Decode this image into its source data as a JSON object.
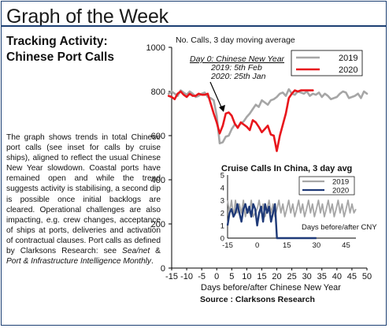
{
  "header": {
    "title": "Graph of the Week"
  },
  "article": {
    "title_line1": "Tracking Activity:",
    "title_line2": "Chinese Port Calls",
    "body_plain": "The graph shows trends in total Chinese port calls (see inset for calls by cruise ships), aligned to reflect the usual Chinese New Year slowdown. Coastal ports have remained open and while the trend suggests activity is stabilising, a second dip is possible once initial backlogs are cleared. Operational challenges are also impacting, e.g. crew changes, acceptance of ships at ports, deliveries and activation of contractual clauses. Port calls as defined by Clarksons Research: see ",
    "body_italic1": "Sea/net",
    "body_amp": " & ",
    "body_italic2": "Port & Infrastructure Intelligence Monthly",
    "body_end": "."
  },
  "source": "Source : Clarksons Research",
  "colors": {
    "frame": "#1c3f73",
    "series_2019": "#a6a6a6",
    "series_2020": "#e8161c",
    "inset_2020": "#1f3a78"
  },
  "chart_data": [
    {
      "type": "line",
      "title": "",
      "ylabel": "No. Calls, 3 day moving average",
      "xlabel": "Days before/after Chinese New Year",
      "xlim": [
        -15,
        50
      ],
      "ylim": [
        0,
        1000
      ],
      "x_ticks": [
        "-15",
        "-10",
        "-5",
        "0",
        "5",
        "10",
        "15",
        "20",
        "25",
        "30",
        "35",
        "40",
        "45",
        "50"
      ],
      "y_ticks": [
        "0",
        "200",
        "400",
        "600",
        "800",
        "1000"
      ],
      "grid": false,
      "legend_position": "top-right",
      "annotation": {
        "line1": "Day 0: Chinese New Year",
        "line2": "2019: 5th Feb",
        "line3": "2020: 25th Jan"
      },
      "series": [
        {
          "name": "2019",
          "x": [
            -16,
            -15,
            -14,
            -13,
            -12,
            -11,
            -10,
            -9,
            -8,
            -7,
            -6,
            -5,
            -4,
            -3,
            -2,
            -1,
            0,
            1,
            2,
            3,
            4,
            5,
            6,
            7,
            8,
            9,
            10,
            11,
            12,
            13,
            14,
            15,
            16,
            17,
            18,
            19,
            20,
            21,
            22,
            23,
            24,
            25,
            26,
            27,
            28,
            29,
            30,
            31,
            32,
            33,
            34,
            35,
            36,
            37,
            38,
            39,
            40,
            41,
            42,
            43,
            44,
            45,
            46,
            47,
            48,
            49,
            50
          ],
          "y": [
            790,
            800,
            790,
            780,
            805,
            795,
            785,
            800,
            790,
            775,
            780,
            790,
            795,
            775,
            770,
            760,
            690,
            565,
            570,
            595,
            600,
            630,
            650,
            640,
            655,
            665,
            685,
            700,
            720,
            740,
            730,
            760,
            750,
            740,
            760,
            765,
            775,
            790,
            795,
            780,
            810,
            790,
            785,
            800,
            795,
            790,
            800,
            780,
            790,
            785,
            795,
            775,
            790,
            780,
            765,
            770,
            775,
            790,
            800,
            795,
            770,
            775,
            780,
            790,
            770,
            800,
            790
          ]
        },
        {
          "name": "2020",
          "x": [
            -16,
            -15,
            -14,
            -13,
            -12,
            -11,
            -10,
            -9,
            -8,
            -7,
            -6,
            -5,
            -4,
            -3,
            -2,
            -1,
            0,
            1,
            2,
            3,
            4,
            5,
            6,
            7,
            8,
            9,
            10,
            11,
            12,
            13,
            14,
            15,
            16,
            17,
            18,
            19,
            20,
            21,
            22,
            23,
            24,
            25,
            26,
            27,
            28,
            29,
            30,
            31,
            32
          ],
          "y": [
            780,
            775,
            765,
            790,
            800,
            785,
            775,
            790,
            780,
            780,
            790,
            785,
            785,
            790,
            745,
            700,
            660,
            610,
            645,
            700,
            705,
            690,
            655,
            635,
            660,
            650,
            640,
            625,
            670,
            660,
            640,
            615,
            630,
            645,
            605,
            600,
            530,
            600,
            650,
            700,
            770,
            790,
            805,
            800,
            805,
            805,
            805,
            805,
            805
          ]
        }
      ]
    },
    {
      "type": "line",
      "title": "Cruise Calls In China, 3 day avg",
      "xlabel": "Days before/after CNY",
      "xlim": [
        -15,
        50
      ],
      "ylim": [
        0,
        5
      ],
      "x_ticks": [
        "-15",
        "0",
        "15",
        "30",
        "45"
      ],
      "y_ticks": [
        "0",
        "1",
        "2",
        "3",
        "4",
        "5"
      ],
      "legend_position": "top-right",
      "series": [
        {
          "name": "2019",
          "x": [
            -15,
            -14,
            -13,
            -12,
            -11,
            -10,
            -9,
            -8,
            -7,
            -6,
            -5,
            -4,
            -3,
            -2,
            -1,
            0,
            1,
            2,
            3,
            4,
            5,
            6,
            7,
            8,
            9,
            10,
            11,
            12,
            13,
            14,
            15,
            16,
            17,
            18,
            19,
            20,
            21,
            22,
            23,
            24,
            25,
            26,
            27,
            28,
            29,
            30,
            31,
            32,
            33,
            34,
            35,
            36,
            37,
            38,
            39,
            40,
            41,
            42,
            43,
            44,
            45,
            46,
            47,
            48,
            49,
            50
          ],
          "y": [
            3,
            2,
            3,
            1.7,
            3,
            2,
            2.7,
            2,
            3,
            1.7,
            2.3,
            2,
            3,
            1.7,
            2,
            2.3,
            3,
            2,
            2.7,
            1.7,
            2.3,
            3,
            2,
            2.7,
            1.7,
            2.3,
            3,
            2,
            2.7,
            1.7,
            2.3,
            3,
            2,
            2.7,
            1.7,
            2.3,
            3,
            2,
            2.7,
            1.7,
            2.3,
            3,
            2,
            2.7,
            1.7,
            2.3,
            3,
            2,
            2.7,
            1.7,
            2.3,
            3,
            2,
            2.7,
            1.7,
            2.3,
            3,
            2,
            2.7,
            1.7,
            2.3,
            3,
            2,
            2.7,
            2,
            2.3
          ]
        },
        {
          "name": "2020",
          "x": [
            -15,
            -14,
            -13,
            -12,
            -11,
            -10,
            -9,
            -8,
            -7,
            -6,
            -5,
            -4,
            -3,
            -2,
            -1,
            0,
            1,
            2,
            3,
            4,
            5,
            6,
            7,
            8,
            9,
            10,
            11,
            12,
            13,
            14,
            15,
            16,
            17,
            18,
            19,
            20,
            21,
            22,
            23,
            24,
            25,
            26,
            27,
            28,
            29,
            30
          ],
          "y": [
            1,
            2,
            2.3,
            1.7,
            2,
            2.7,
            2,
            1.3,
            2.3,
            2.7,
            2,
            2.5,
            1.7,
            2.7,
            2.3,
            1,
            2,
            2.5,
            1.3,
            2.7,
            2,
            2.5,
            1.3,
            2,
            2.7,
            0,
            0,
            0,
            0,
            0,
            0,
            0,
            0,
            0,
            0,
            0,
            0,
            0,
            0,
            0,
            0,
            0,
            0,
            0,
            0,
            0
          ]
        }
      ]
    }
  ]
}
